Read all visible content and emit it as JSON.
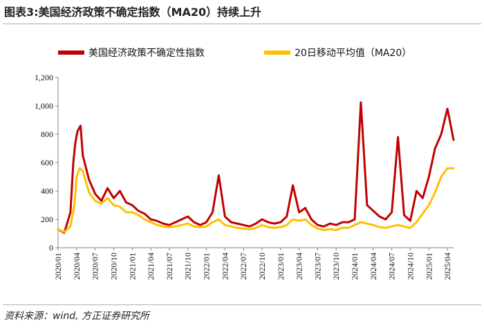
{
  "header": {
    "figure_title": "图表3:美国经济政策不确定指数（MA20）持续上升"
  },
  "footer": {
    "source": "资料来源：wind, 方正证券研究所"
  },
  "colors": {
    "index_series": "#C00000",
    "ma20_series": "#FFC000",
    "axis": "#808080"
  },
  "chart_data": {
    "type": "line",
    "title": "图表3:美国经济政策不确定指数（MA20）持续上升",
    "xlabel": "",
    "ylabel": "",
    "ylim": [
      0,
      1200
    ],
    "yticks": [
      0,
      200,
      400,
      600,
      800,
      1000,
      1200
    ],
    "ytick_labels": [
      "0",
      "200",
      "400",
      "600",
      "800",
      "1,000",
      "1,200"
    ],
    "xlim": [
      "2020-01",
      "2025-05"
    ],
    "xtick_labels": [
      "2020/01",
      "2020/04",
      "2020/07",
      "2020/10",
      "2021/01",
      "2021/04",
      "2021/07",
      "2021/10",
      "2022/01",
      "2022/04",
      "2022/07",
      "2022/10",
      "2023/01",
      "2023/04",
      "2023/07",
      "2023/10",
      "2024/01",
      "2024/04",
      "2024/07",
      "2024/10",
      "2025/01",
      "2025/04"
    ],
    "grid": false,
    "legend_position": "top",
    "series": [
      {
        "name": "美国经济政策不确定性指数",
        "style": "daily values, thick red band",
        "points": [
          [
            "2020-01",
            130
          ],
          [
            "2020-02",
            105
          ],
          [
            "2020-03",
            250
          ],
          [
            "2020-03-15",
            600
          ],
          [
            "2020-03-25",
            740
          ],
          [
            "2020-04-05",
            820
          ],
          [
            "2020-04-20",
            860
          ],
          [
            "2020-05",
            650
          ],
          [
            "2020-06",
            480
          ],
          [
            "2020-07",
            380
          ],
          [
            "2020-08",
            330
          ],
          [
            "2020-09",
            420
          ],
          [
            "2020-10",
            350
          ],
          [
            "2020-11",
            400
          ],
          [
            "2020-12",
            320
          ],
          [
            "2021-01",
            300
          ],
          [
            "2021-02",
            260
          ],
          [
            "2021-03",
            240
          ],
          [
            "2021-04",
            200
          ],
          [
            "2021-05",
            190
          ],
          [
            "2021-06",
            170
          ],
          [
            "2021-07",
            160
          ],
          [
            "2021-08",
            180
          ],
          [
            "2021-09",
            200
          ],
          [
            "2021-10",
            220
          ],
          [
            "2021-11",
            180
          ],
          [
            "2021-12",
            160
          ],
          [
            "2022-01",
            180
          ],
          [
            "2022-02",
            250
          ],
          [
            "2022-03",
            510
          ],
          [
            "2022-04",
            220
          ],
          [
            "2022-05",
            180
          ],
          [
            "2022-06",
            170
          ],
          [
            "2022-07",
            160
          ],
          [
            "2022-08",
            150
          ],
          [
            "2022-09",
            170
          ],
          [
            "2022-10",
            200
          ],
          [
            "2022-11",
            180
          ],
          [
            "2022-12",
            170
          ],
          [
            "2023-01",
            180
          ],
          [
            "2023-02",
            220
          ],
          [
            "2023-03",
            440
          ],
          [
            "2023-04",
            250
          ],
          [
            "2023-05",
            280
          ],
          [
            "2023-06",
            200
          ],
          [
            "2023-07",
            160
          ],
          [
            "2023-08",
            150
          ],
          [
            "2023-09",
            170
          ],
          [
            "2023-10",
            160
          ],
          [
            "2023-11",
            180
          ],
          [
            "2023-12",
            180
          ],
          [
            "2024-01",
            200
          ],
          [
            "2024-02",
            1025
          ],
          [
            "2024-03",
            300
          ],
          [
            "2024-04",
            260
          ],
          [
            "2024-05",
            220
          ],
          [
            "2024-06",
            200
          ],
          [
            "2024-07",
            250
          ],
          [
            "2024-08",
            780
          ],
          [
            "2024-09",
            230
          ],
          [
            "2024-10",
            190
          ],
          [
            "2024-11",
            400
          ],
          [
            "2024-12",
            350
          ],
          [
            "2025-01",
            500
          ],
          [
            "2025-02",
            700
          ],
          [
            "2025-03",
            800
          ],
          [
            "2025-04",
            980
          ],
          [
            "2025-05",
            760
          ]
        ]
      },
      {
        "name": "20日移动平均值（MA20）",
        "style": "smooth yellow line",
        "points": [
          [
            "2020-01",
            130
          ],
          [
            "2020-02",
            110
          ],
          [
            "2020-03",
            150
          ],
          [
            "2020-03-20",
            300
          ],
          [
            "2020-04",
            500
          ],
          [
            "2020-04-15",
            560
          ],
          [
            "2020-05",
            540
          ],
          [
            "2020-06",
            390
          ],
          [
            "2020-07",
            330
          ],
          [
            "2020-08",
            310
          ],
          [
            "2020-09",
            350
          ],
          [
            "2020-10",
            300
          ],
          [
            "2020-11",
            290
          ],
          [
            "2020-12",
            250
          ],
          [
            "2021-01",
            250
          ],
          [
            "2021-02",
            230
          ],
          [
            "2021-03",
            200
          ],
          [
            "2021-04",
            180
          ],
          [
            "2021-05",
            160
          ],
          [
            "2021-06",
            150
          ],
          [
            "2021-07",
            145
          ],
          [
            "2021-08",
            150
          ],
          [
            "2021-09",
            160
          ],
          [
            "2021-10",
            170
          ],
          [
            "2021-11",
            150
          ],
          [
            "2021-12",
            145
          ],
          [
            "2022-01",
            150
          ],
          [
            "2022-02",
            180
          ],
          [
            "2022-03",
            200
          ],
          [
            "2022-04",
            160
          ],
          [
            "2022-05",
            150
          ],
          [
            "2022-06",
            140
          ],
          [
            "2022-07",
            135
          ],
          [
            "2022-08",
            130
          ],
          [
            "2022-09",
            140
          ],
          [
            "2022-10",
            160
          ],
          [
            "2022-11",
            145
          ],
          [
            "2022-12",
            140
          ],
          [
            "2023-01",
            145
          ],
          [
            "2023-02",
            160
          ],
          [
            "2023-03",
            200
          ],
          [
            "2023-04",
            190
          ],
          [
            "2023-05",
            200
          ],
          [
            "2023-06",
            160
          ],
          [
            "2023-07",
            135
          ],
          [
            "2023-08",
            125
          ],
          [
            "2023-09",
            130
          ],
          [
            "2023-10",
            125
          ],
          [
            "2023-11",
            140
          ],
          [
            "2023-12",
            140
          ],
          [
            "2024-01",
            160
          ],
          [
            "2024-02",
            180
          ],
          [
            "2024-03",
            170
          ],
          [
            "2024-04",
            160
          ],
          [
            "2024-05",
            145
          ],
          [
            "2024-06",
            140
          ],
          [
            "2024-07",
            150
          ],
          [
            "2024-08",
            160
          ],
          [
            "2024-09",
            150
          ],
          [
            "2024-10",
            140
          ],
          [
            "2024-11",
            180
          ],
          [
            "2024-12",
            240
          ],
          [
            "2025-01",
            300
          ],
          [
            "2025-02",
            390
          ],
          [
            "2025-03",
            500
          ],
          [
            "2025-04",
            560
          ],
          [
            "2025-05",
            560
          ]
        ]
      }
    ]
  }
}
